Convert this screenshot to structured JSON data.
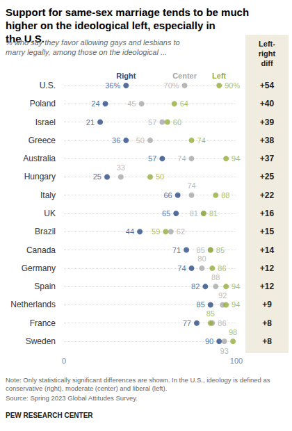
{
  "chart_data": {
    "type": "scatter",
    "title": "Support for same-sex marriage tends to be much higher on the ideological left, especially in the U.S.",
    "subtitle": "% who say they favor allowing gays and lesbians to marry legally, among those on the ideological ...",
    "categories": [
      "U.S.",
      "Poland",
      "Israel",
      "Greece",
      "Australia",
      "Hungary",
      "Italy",
      "UK",
      "Brazil",
      "Canada",
      "Germany",
      "Spain",
      "Netherlands",
      "France",
      "Sweden"
    ],
    "series": [
      {
        "name": "Right",
        "color": "#2b4a82",
        "values": [
          36,
          24,
          21,
          36,
          57,
          25,
          66,
          65,
          44,
          71,
          74,
          82,
          85,
          77,
          90
        ],
        "value_labels": [
          "36%",
          "24",
          "21",
          "36",
          "57",
          "25",
          "66",
          "65",
          "44",
          "71",
          "74",
          "82",
          "85",
          "77",
          "90"
        ]
      },
      {
        "name": "Center",
        "color": "#a8a8a8",
        "values": [
          70,
          45,
          57,
          50,
          74,
          33,
          74,
          81,
          62,
          85,
          80,
          88,
          92,
          86,
          93
        ],
        "value_labels": [
          "70%",
          "45",
          "57",
          "50",
          "74",
          "33",
          "74",
          "81",
          "62",
          "85",
          "80",
          "88",
          "92",
          "86",
          "93"
        ]
      },
      {
        "name": "Left",
        "color": "#93ad3c",
        "values": [
          90,
          64,
          60,
          74,
          94,
          50,
          88,
          81,
          59,
          85,
          86,
          94,
          94,
          85,
          98
        ],
        "value_labels": [
          "90%",
          "64",
          "60",
          "74",
          "94",
          "50",
          "88",
          "81",
          "59",
          "85",
          "86",
          "94",
          "94",
          "85",
          "98"
        ]
      }
    ],
    "xlim": [
      0,
      100
    ],
    "xticks": [
      0,
      100
    ],
    "grid": true,
    "data_labels": true,
    "diff": {
      "title": "Left-right diff",
      "labels": [
        "+54",
        "+40",
        "+39",
        "+38",
        "+37",
        "+25",
        "+22",
        "+16",
        "+15",
        "+14",
        "+12",
        "+12",
        "+9",
        "+8",
        "+8"
      ]
    },
    "note": "Note: Only statistically significant differences are shown. In the U.S., ideology is defined as conservative (right), moderate (center) and liberal (left).",
    "source": "Source: Spring 2023 Global Attitudes Survey.",
    "credit": "PEW RESEARCH CENTER"
  }
}
